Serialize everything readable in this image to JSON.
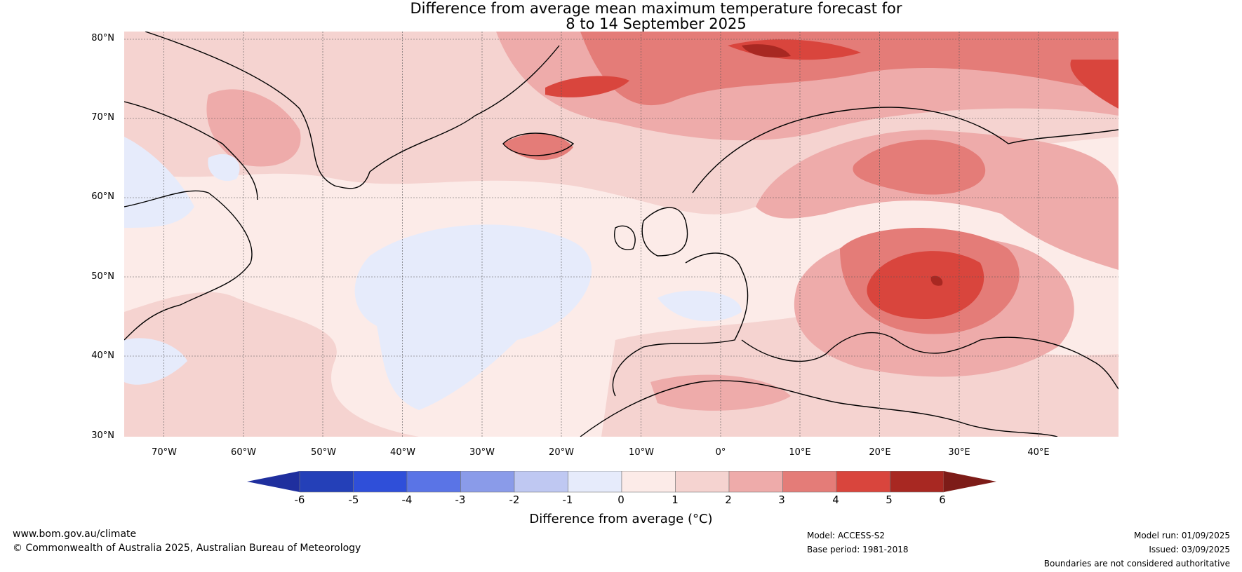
{
  "title": {
    "line1": "Difference from average mean maximum temperature forecast for",
    "line2": "8 to 14 September 2025"
  },
  "axes": {
    "lat_labels": [
      "80°N",
      "70°N",
      "60°N",
      "50°N",
      "40°N",
      "30°N"
    ],
    "lon_labels": [
      "70°W",
      "60°W",
      "50°W",
      "40°W",
      "30°W",
      "20°W",
      "10°W",
      "0°",
      "10°E",
      "20°E",
      "30°E",
      "40°E"
    ]
  },
  "colorbar": {
    "title": "Difference from average (°C)",
    "tick_labels": [
      "-6",
      "-5",
      "-4",
      "-3",
      "-2",
      "-1",
      "0",
      "1",
      "2",
      "3",
      "4",
      "5",
      "6"
    ],
    "colors": [
      "#1f2f9e",
      "#2440b8",
      "#2f4fd9",
      "#5a74e6",
      "#8a9be9",
      "#bfc8f2",
      "#e6ebfb",
      "#fcebe8",
      "#f5d3d0",
      "#eeabaa",
      "#e47c78",
      "#d9453d",
      "#a82822",
      "#7d1c18"
    ]
  },
  "map_colors": {
    "cool": "#e6ebfb",
    "neutral": "#fcebe8",
    "warm1": "#f5d3d0",
    "warm2": "#eeabaa",
    "warm3": "#e47c78",
    "warm4": "#d9453d",
    "warm5": "#a82822"
  },
  "footer": {
    "website": "www.bom.gov.au/climate",
    "copyright": "© Commonwealth of Australia 2025, Australian Bureau of Meteorology",
    "model": "Model: ACCESS-S2",
    "base_period": "Base period: 1981-2018",
    "model_run": "Model run: 01/09/2025",
    "issued": "Issued: 03/09/2025",
    "disclaimer": "Boundaries are not considered authoritative"
  }
}
